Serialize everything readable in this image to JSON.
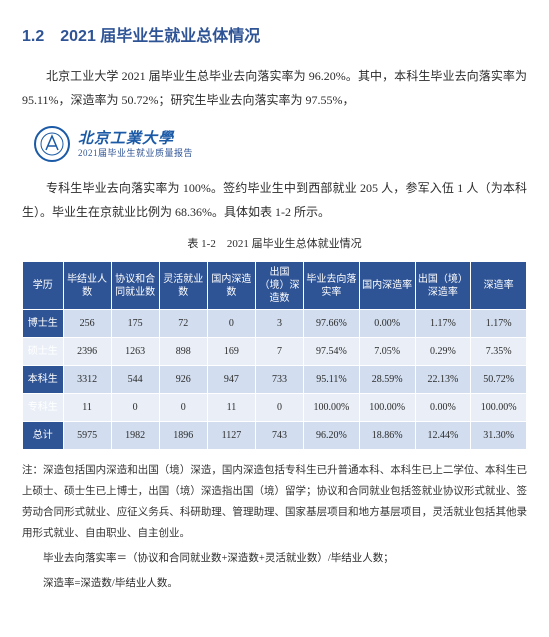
{
  "section": {
    "heading": "1.2　2021 届毕业生就业总体情况",
    "para1": "北京工业大学 2021 届毕业生总毕业去向落实率为 96.20%。其中，本科生毕业去向落实率为 95.11%，深造率为 50.72%；研究生毕业去向落实率为 97.55%，",
    "para2": "专科生毕业去向落实率为 100%。签约毕业生中到西部就业 205 人，参军入伍 1 人（为本科生）。毕业生在京就业比例为 68.36%。具体如表 1-2 所示。"
  },
  "logo": {
    "univ": "北京工業大學",
    "sub": "2021届毕业生就业质量报告"
  },
  "table": {
    "caption": "表 1-2　2021 届毕业生总体就业情况",
    "headers": [
      "学历",
      "毕结业人数",
      "协议和合同就业数",
      "灵活就业数",
      "国内深造数",
      "出国（境）深造数",
      "毕业去向落实率",
      "国内深造率",
      "出国（境）深造率",
      "深造率"
    ],
    "rows": [
      {
        "label": "博士生",
        "cells": [
          "256",
          "175",
          "72",
          "0",
          "3",
          "97.66%",
          "0.00%",
          "1.17%",
          "1.17%"
        ]
      },
      {
        "label": "硕士生",
        "cells": [
          "2396",
          "1263",
          "898",
          "169",
          "7",
          "97.54%",
          "7.05%",
          "0.29%",
          "7.35%"
        ]
      },
      {
        "label": "本科生",
        "cells": [
          "3312",
          "544",
          "926",
          "947",
          "733",
          "95.11%",
          "28.59%",
          "22.13%",
          "50.72%"
        ]
      },
      {
        "label": "专科生",
        "cells": [
          "11",
          "0",
          "0",
          "11",
          "0",
          "100.00%",
          "100.00%",
          "0.00%",
          "100.00%"
        ]
      },
      {
        "label": "总计",
        "cells": [
          "5975",
          "1982",
          "1896",
          "1127",
          "743",
          "96.20%",
          "18.86%",
          "12.44%",
          "31.30%"
        ]
      }
    ]
  },
  "footnote": {
    "text": "注：深造包括国内深造和出国（境）深造，国内深造包括专科生已升普通本科、本科生已上二学位、本科生已上硕士、硕士生已上博士，出国（境）深造指出国（境）留学；协议和合同就业包括签就业协议形式就业、签劳动合同形式就业、应征义务兵、科研助理、管理助理、国家基层项目和地方基层项目，灵活就业包括其他录用形式就业、自由职业、自主创业。",
    "formula1": "毕业去向落实率＝（协议和合同就业数+深造数+灵活就业数）/毕结业人数；",
    "formula2": "深造率=深造数/毕结业人数。"
  },
  "colors": {
    "header_bg": "#2f5496",
    "row_bg": "#d2deef",
    "row_alt_bg": "#eaeff7"
  }
}
